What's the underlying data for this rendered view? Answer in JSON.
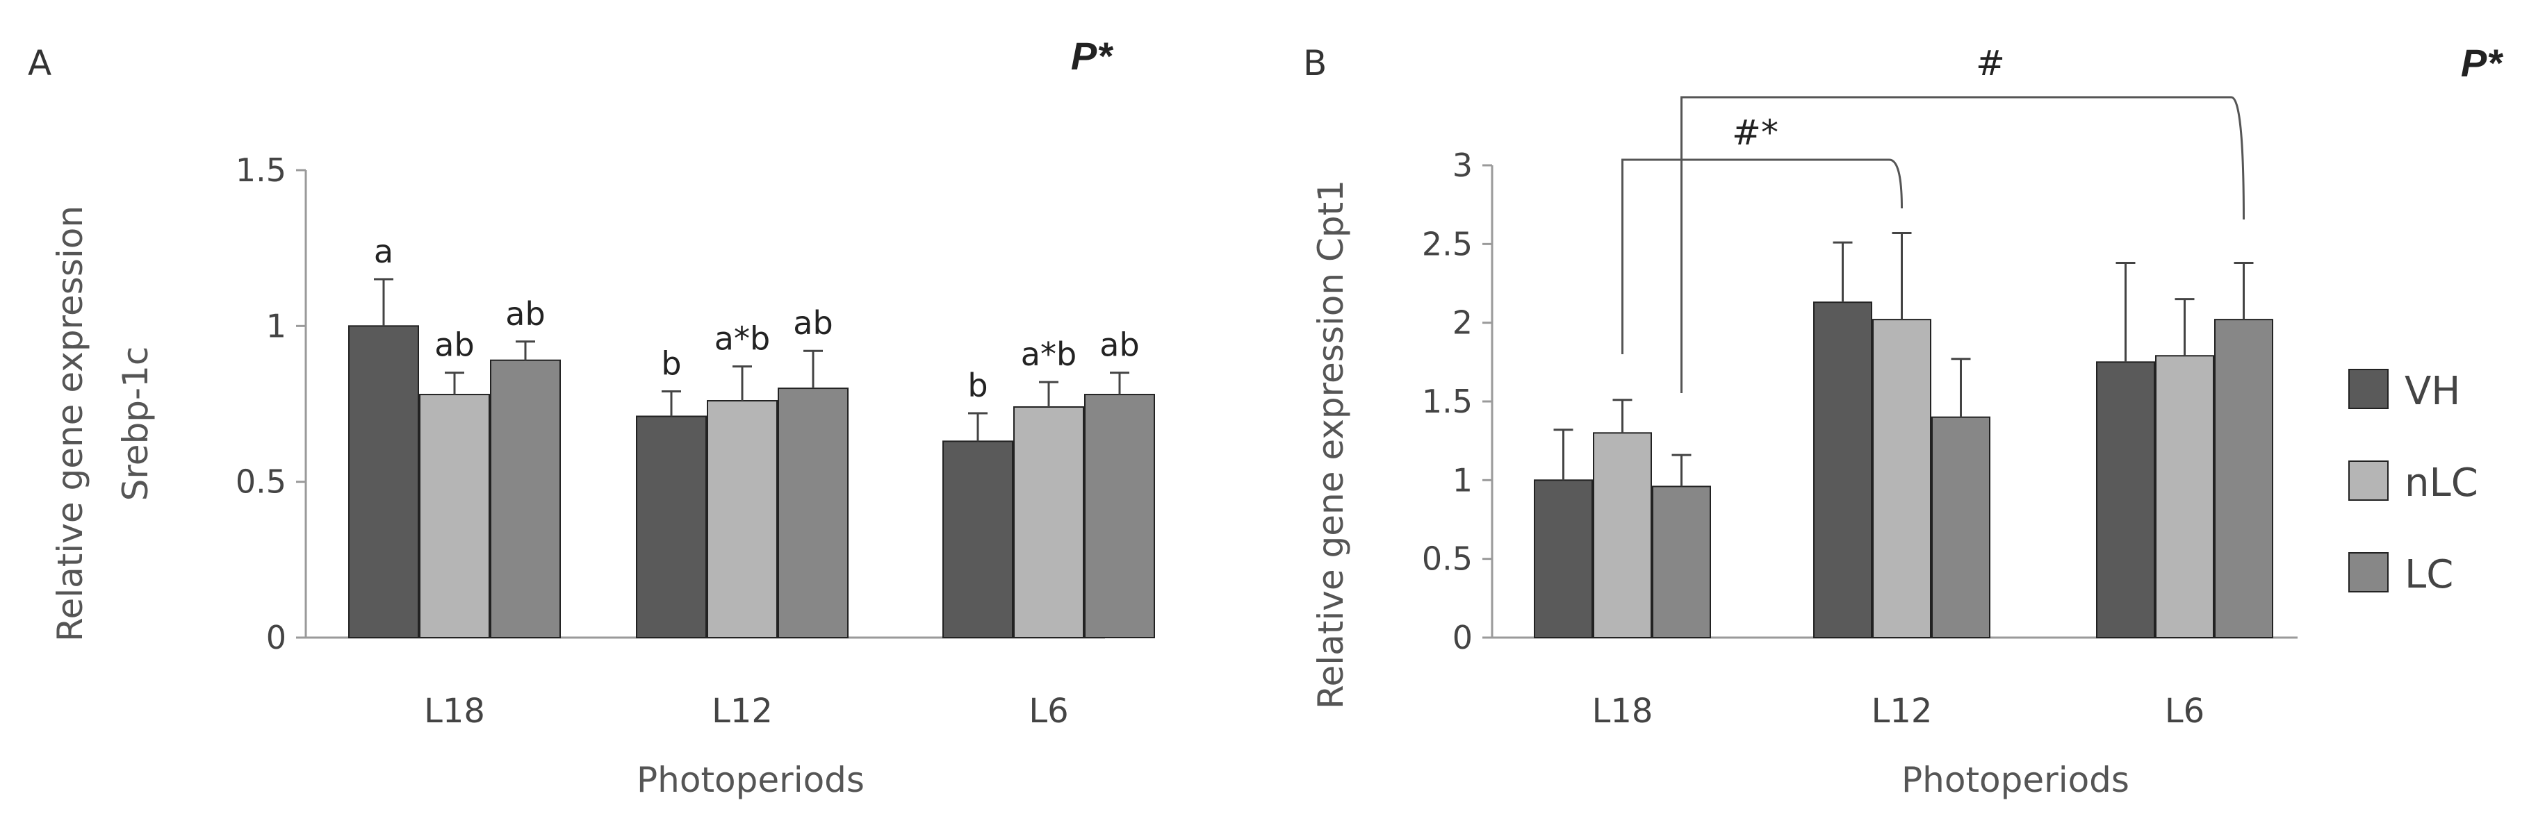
{
  "colors": {
    "VH": "#5a5a5a",
    "nLC": "#b5b5b5",
    "LC": "#878787",
    "axis": "#9a9a9a",
    "stroke": "#222222"
  },
  "legend": {
    "items": [
      "VH",
      "nLC",
      "LC"
    ]
  },
  "chart_data": [
    {
      "type": "bar",
      "panel": "A",
      "significance_note": "P*",
      "categories": [
        "L18",
        "L12",
        "L6"
      ],
      "series": [
        {
          "name": "VH",
          "values": [
            1.0,
            0.71,
            0.63
          ],
          "errors": [
            0.15,
            0.08,
            0.09
          ],
          "labels": [
            "a",
            "b",
            "b"
          ]
        },
        {
          "name": "nLC",
          "values": [
            0.78,
            0.76,
            0.74
          ],
          "errors": [
            0.07,
            0.11,
            0.08
          ],
          "labels": [
            "ab",
            "a*b",
            "a*b"
          ]
        },
        {
          "name": "LC",
          "values": [
            0.89,
            0.8,
            0.78
          ],
          "errors": [
            0.06,
            0.12,
            0.07
          ],
          "labels": [
            "ab",
            "ab",
            "ab"
          ]
        }
      ],
      "xlabel": "Photoperiods",
      "ylabel_lines": [
        "Relative gene expression",
        "Srebp-1c"
      ],
      "ylim": [
        0,
        1.5
      ],
      "yticks": [
        0,
        0.5,
        1,
        1.5
      ],
      "ytick_labels": [
        "0",
        "0.5",
        "1",
        "1.5"
      ],
      "grid": false
    },
    {
      "type": "bar",
      "panel": "B",
      "significance_note": "P*",
      "categories": [
        "L18",
        "L12",
        "L6"
      ],
      "series": [
        {
          "name": "VH",
          "values": [
            1.0,
            2.13,
            1.75
          ],
          "errors": [
            0.32,
            0.38,
            0.63
          ]
        },
        {
          "name": "nLC",
          "values": [
            1.3,
            2.02,
            1.79
          ],
          "errors": [
            0.21,
            0.55,
            0.36
          ]
        },
        {
          "name": "LC",
          "values": [
            0.96,
            1.4,
            2.02
          ],
          "errors": [
            0.2,
            0.37,
            0.36
          ]
        }
      ],
      "xlabel": "Photoperiods",
      "ylabel_lines": [
        "Relative gene expression Cpt1"
      ],
      "ylim": [
        0,
        3
      ],
      "yticks": [
        0,
        0.5,
        1,
        1.5,
        2,
        2.5,
        3
      ],
      "ytick_labels": [
        "0",
        "0.5",
        "1",
        "1.5",
        "2",
        "2.5",
        "3"
      ],
      "grid": false,
      "brackets": [
        {
          "label": "#*",
          "from": {
            "category": "L18",
            "series": "nLC"
          },
          "to": {
            "category": "L12",
            "series": "nLC"
          }
        },
        {
          "label": "#",
          "from": {
            "category": "L18",
            "series": "LC"
          },
          "to": {
            "category": "L6",
            "series": "LC"
          }
        }
      ]
    }
  ]
}
